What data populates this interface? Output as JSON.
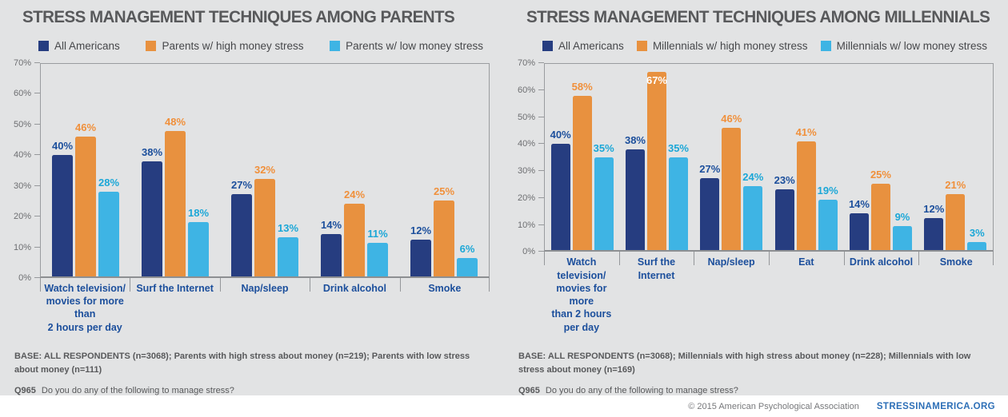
{
  "page": {
    "background": "#e2e3e4",
    "footer": {
      "copyright": "© 2015 American Psychological Association",
      "site_link": "STRESSINAMERICA.ORG"
    }
  },
  "colors": {
    "title": "#58595b",
    "axis": "#9a9c9f",
    "category_label": "#1c4f9c",
    "navy": "#263d80",
    "orange": "#e8913f",
    "cyan": "#3eb4e4",
    "footer_link": "#2d6fb7"
  },
  "chart_data": [
    {
      "type": "bar",
      "title": "STRESS MANAGEMENT TECHNIQUES AMONG PARENTS",
      "ylim": [
        0,
        70
      ],
      "yticks": [
        "0%",
        "10%",
        "20%",
        "30%",
        "40%",
        "50%",
        "60%",
        "70%"
      ],
      "grid": false,
      "legend_position": "top",
      "categories": [
        "Watch television/\nmovies for more than\n2 hours per day",
        "Surf the Internet",
        "Nap/sleep",
        "Drink alcohol",
        "Smoke"
      ],
      "series": [
        {
          "name": "All Americans",
          "color": "#263d80",
          "label_color": "#1c4f9c",
          "values": [
            40,
            38,
            27,
            14,
            12
          ]
        },
        {
          "name": "Parents w/ high money stress",
          "color": "#e8913f",
          "label_color": "#f0903b",
          "values": [
            46,
            48,
            32,
            24,
            25
          ]
        },
        {
          "name": "Parents w/ low money stress",
          "color": "#3eb4e4",
          "label_color": "#1ba7d7",
          "values": [
            28,
            18,
            13,
            11,
            6
          ]
        }
      ],
      "base_text": "BASE:  ALL RESPONDENTS (n=3068); Parents with high stress about money (n=219); Parents with low stress about money (n=111)",
      "question_code": "Q965",
      "question_text": "Do you do any of the following to manage stress?"
    },
    {
      "type": "bar",
      "title": "STRESS MANAGEMENT TECHNIQUES AMONG MILLENNIALS",
      "ylim": [
        0,
        70
      ],
      "yticks": [
        "0%",
        "10%",
        "20%",
        "30%",
        "40%",
        "50%",
        "60%",
        "70%"
      ],
      "grid": false,
      "legend_position": "top",
      "categories": [
        "Watch television/\nmovies for more\nthan 2 hours per day",
        "Surf the Internet",
        "Nap/sleep",
        "Eat",
        "Drink alcohol",
        "Smoke"
      ],
      "series": [
        {
          "name": "All Americans",
          "color": "#263d80",
          "label_color": "#1c4f9c",
          "values": [
            40,
            38,
            27,
            23,
            14,
            12
          ]
        },
        {
          "name": "Millennials w/ high money stress",
          "color": "#e8913f",
          "label_color": "#f0903b",
          "values": [
            58,
            67,
            46,
            41,
            25,
            21
          ]
        },
        {
          "name": "Millennials w/ low money stress",
          "color": "#3eb4e4",
          "label_color": "#1ba7d7",
          "values": [
            35,
            35,
            24,
            19,
            9,
            3
          ]
        }
      ],
      "base_text": "BASE:  ALL RESPONDENTS (n=3068); Millennials with high stress about money (n=228); Millennials with low stress about money (n=169)",
      "question_code": "Q965",
      "question_text": "Do you do any of the following to manage stress?"
    }
  ]
}
